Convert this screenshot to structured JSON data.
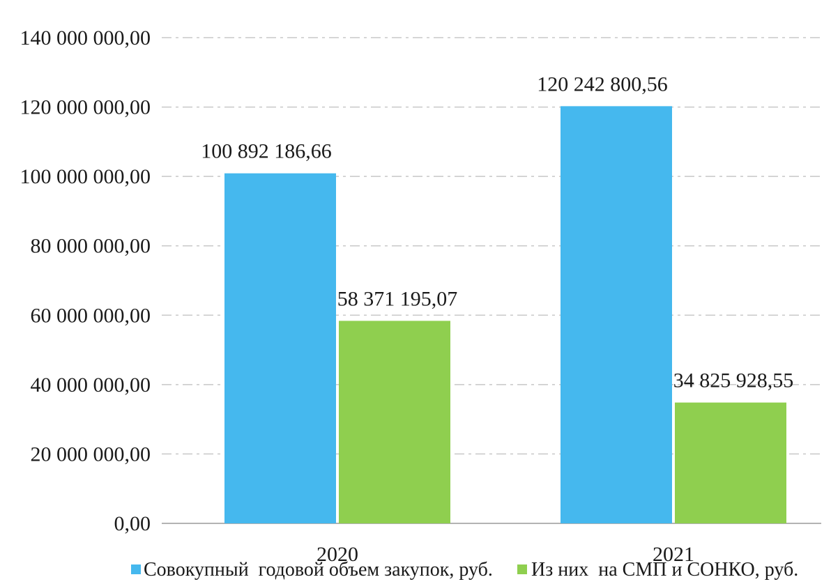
{
  "chart_data": {
    "type": "bar",
    "categories": [
      "2020",
      "2021"
    ],
    "series": [
      {
        "name": "Совокупный  годовой объем закупок, руб.",
        "color": "#45b8ee",
        "values": [
          100892186.66,
          120242800.56
        ],
        "labels": [
          "100 892 186,66",
          "120 242 800,56"
        ]
      },
      {
        "name": "Из них  на СМП и СОНКО, руб.",
        "color": "#8fcf4f",
        "values": [
          58371195.07,
          34825928.55
        ],
        "labels": [
          "58 371 195,07",
          "34 825 928,55"
        ]
      }
    ],
    "ylim": [
      0,
      140000000
    ],
    "yticks": [
      {
        "value": 0,
        "label": "0,00"
      },
      {
        "value": 20000000,
        "label": "20 000 000,00"
      },
      {
        "value": 40000000,
        "label": "40 000 000,00"
      },
      {
        "value": 60000000,
        "label": "60 000 000,00"
      },
      {
        "value": 80000000,
        "label": "80 000 000,00"
      },
      {
        "value": 100000000,
        "label": "100 000 000,00"
      },
      {
        "value": 120000000,
        "label": "120 000 000,00"
      },
      {
        "value": 140000000,
        "label": "140 000 000,00"
      }
    ],
    "title": "",
    "xlabel": "",
    "ylabel": "",
    "grid": true,
    "legend_position": "bottom"
  }
}
